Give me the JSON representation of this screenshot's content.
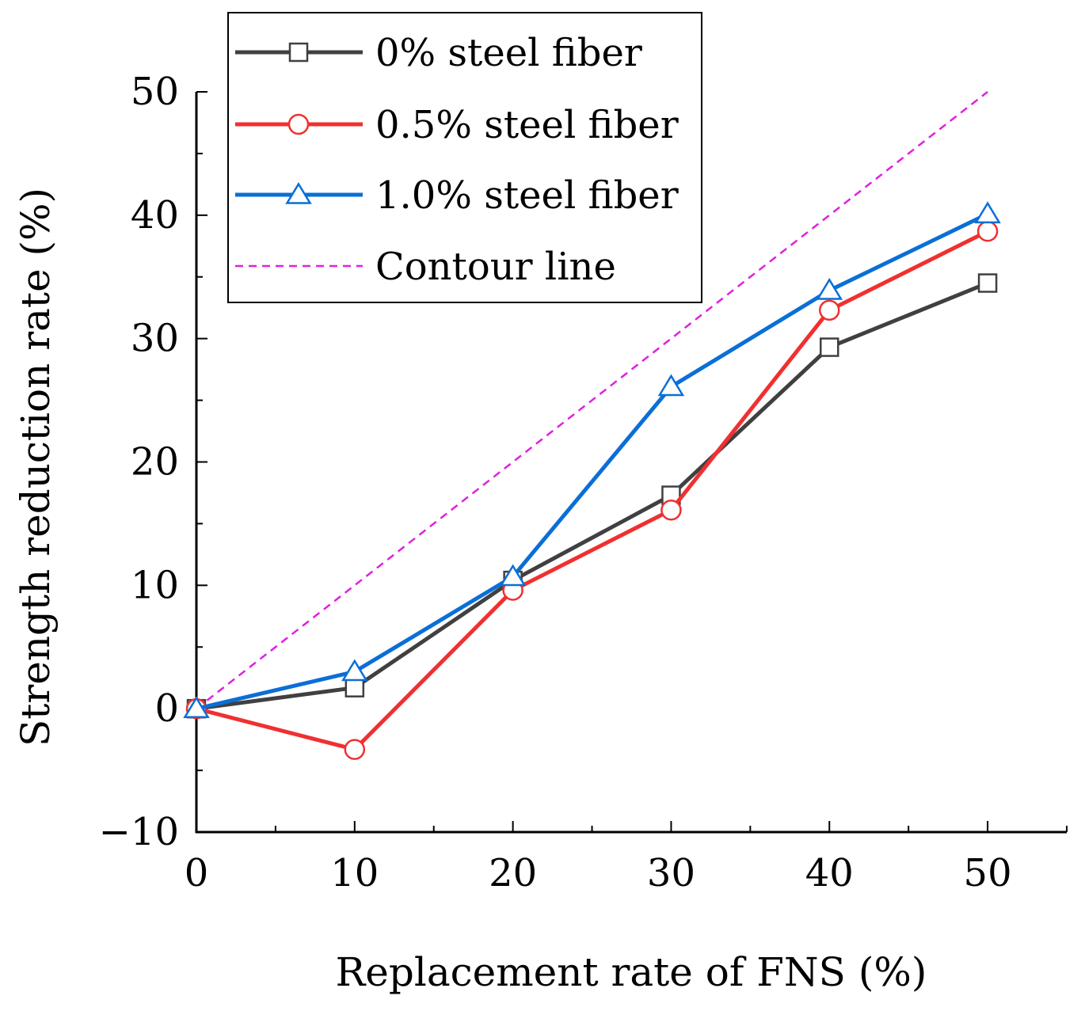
{
  "chart_data": {
    "type": "line",
    "title": "",
    "xlabel": "Replacement rate of FNS (%)",
    "ylabel": "Strength reduction rate (%)",
    "xlim": [
      0,
      55
    ],
    "ylim": [
      -10,
      50
    ],
    "x": [
      0,
      10,
      20,
      30,
      40,
      50
    ],
    "xticks": [
      0,
      10,
      20,
      30,
      40,
      50
    ],
    "yticks": [
      -10,
      0,
      10,
      20,
      30,
      40,
      50
    ],
    "xtick_labels": [
      "0",
      "10",
      "20",
      "30",
      "40",
      "50"
    ],
    "ytick_labels": [
      "−10",
      "0",
      "10",
      "20",
      "30",
      "40",
      "50"
    ],
    "grid": false,
    "legend_position": "top-left",
    "series": [
      {
        "name": "0% steel fiber",
        "color": "#404040",
        "marker": "square",
        "values": [
          0,
          1.7,
          10.4,
          17.3,
          29.3,
          34.5
        ]
      },
      {
        "name": "0.5% steel fiber",
        "color": "#f03030",
        "marker": "circle",
        "values": [
          0,
          -3.3,
          9.6,
          16.1,
          32.3,
          38.7
        ]
      },
      {
        "name": "1.0% steel fiber",
        "color": "#0a6fd6",
        "marker": "triangle",
        "values": [
          0,
          3.0,
          10.7,
          26.1,
          33.9,
          40.1
        ]
      }
    ],
    "reference_line": {
      "name": "Contour line",
      "color": "#e020e0",
      "style": "dashed",
      "x": [
        0,
        50
      ],
      "y": [
        0,
        50
      ]
    }
  }
}
